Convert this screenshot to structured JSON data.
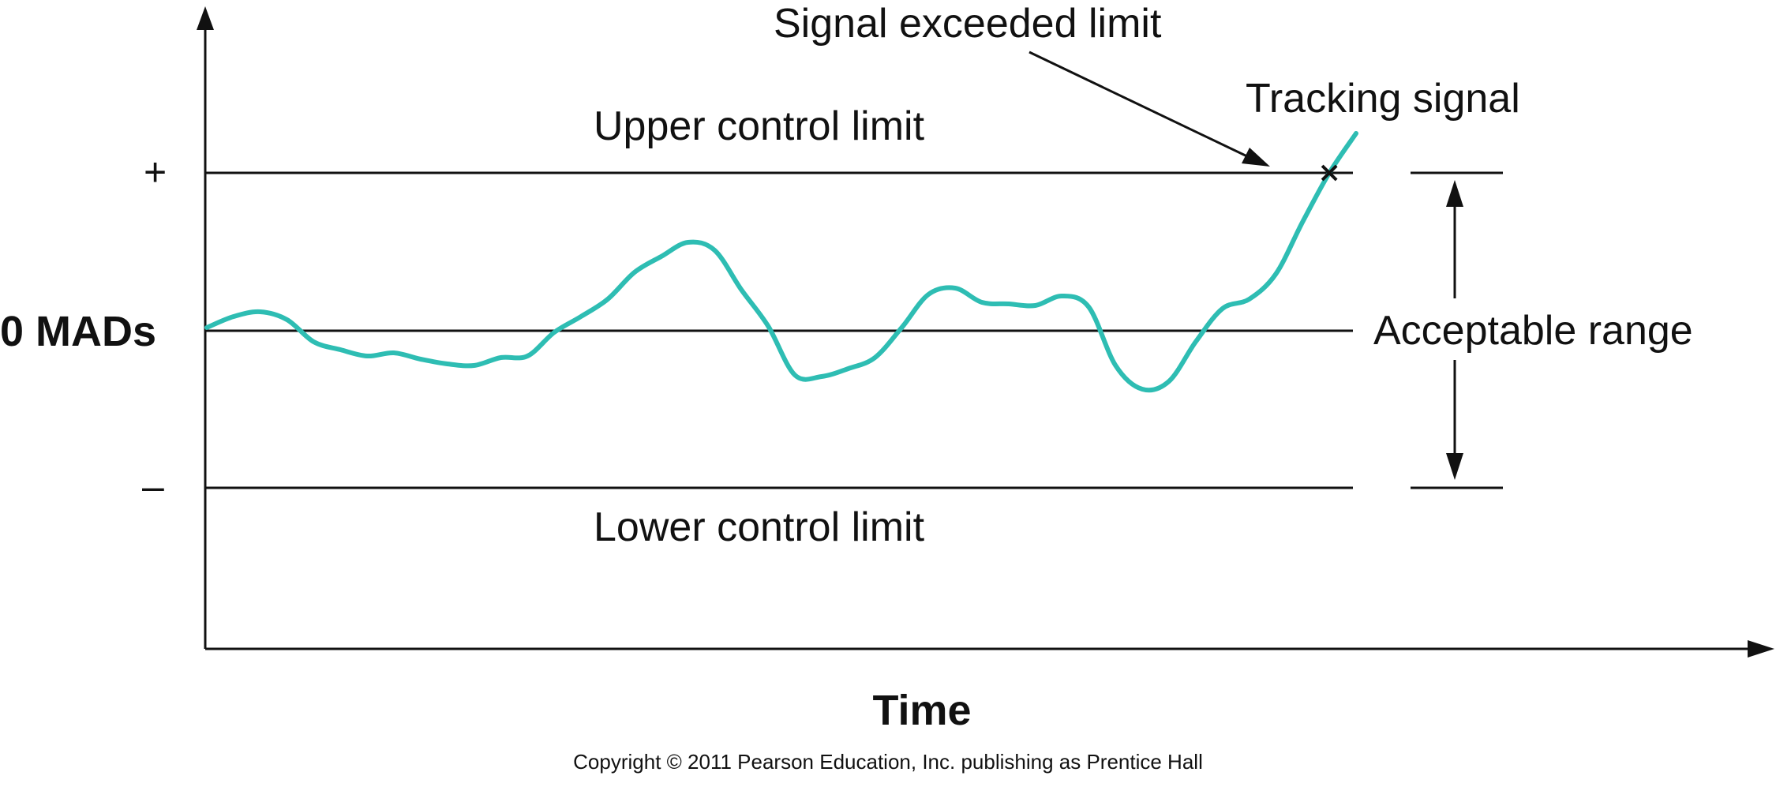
{
  "labels": {
    "signal_exceeded": "Signal exceeded limit",
    "tracking_signal": "Tracking signal",
    "upper_limit": "Upper control limit",
    "lower_limit": "Lower control limit",
    "plus_sign": "+",
    "minus_sign": "–",
    "zero_mads": "0 MADs",
    "acceptable_range": "Acceptable range",
    "x_axis": "Time",
    "copyright": "Copyright © 2011 Pearson Education, Inc. publishing as Prentice Hall"
  },
  "colors": {
    "tracking_signal": "#2ebdb3",
    "lines": "#111111"
  },
  "tracking_curve": {
    "y_range": [
      -1,
      1
    ],
    "exceeded_index": 42,
    "values": [
      0.02,
      0.09,
      0.12,
      0.07,
      -0.07,
      -0.12,
      -0.16,
      -0.14,
      -0.18,
      -0.21,
      -0.22,
      -0.17,
      -0.16,
      -0.01,
      0.09,
      0.2,
      0.37,
      0.47,
      0.56,
      0.51,
      0.26,
      0.03,
      -0.28,
      -0.29,
      -0.24,
      -0.17,
      0.02,
      0.23,
      0.27,
      0.18,
      0.17,
      0.16,
      0.22,
      0.15,
      -0.22,
      -0.37,
      -0.32,
      -0.07,
      0.14,
      0.2,
      0.36,
      0.69,
      1.0,
      1.25
    ]
  }
}
